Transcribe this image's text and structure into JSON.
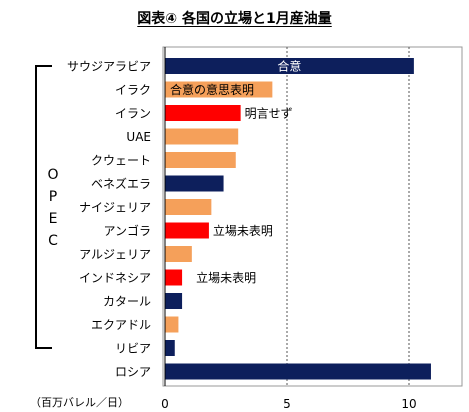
{
  "title": "図表④ 各国の立場と1月産油量",
  "chart_data": {
    "type": "bar",
    "orientation": "horizontal",
    "categories": [
      "サウジアラビア",
      "イラク",
      "イラン",
      "UAE",
      "クウェート",
      "ベネズエラ",
      "ナイジェリア",
      "アンゴラ",
      "アルジェリア",
      "インドネシア",
      "カタール",
      "エクアドル",
      "リビア",
      "ロシア"
    ],
    "values": [
      10.2,
      4.4,
      3.1,
      3.0,
      2.9,
      2.4,
      1.9,
      1.8,
      1.1,
      0.7,
      0.7,
      0.55,
      0.4,
      10.9
    ],
    "bar_colors": [
      "#0d1f5c",
      "#f5a05a",
      "#ff0000",
      "#f5a05a",
      "#f5a05a",
      "#0d1f5c",
      "#f5a05a",
      "#ff0000",
      "#f5a05a",
      "#ff0000",
      "#0d1f5c",
      "#f5a05a",
      "#0d1f5c",
      "#0d1f5c"
    ],
    "annotations": [
      {
        "category": "サウジアラビア",
        "text": "合意",
        "color": "#ffffff",
        "placement": "inside-center"
      },
      {
        "category": "イラク",
        "text": "合意の意思表明",
        "color": "#000000",
        "placement": "inside-left"
      },
      {
        "category": "イラン",
        "text": "明言せず",
        "color": "#000000",
        "placement": "right-of-bar"
      },
      {
        "category": "アンゴラ",
        "text": "立場未表明",
        "color": "#000000",
        "placement": "right-of-bar"
      },
      {
        "category": "インドネシア",
        "text": "立場未表明",
        "color": "#000000",
        "placement": "right-of-bar"
      }
    ],
    "group_bracket": {
      "label": "OPEC",
      "from": "サウジアラビア",
      "to": "リビア"
    },
    "unit_label": "（百万バレル／日）",
    "xlim": [
      0,
      11
    ],
    "xticks": [
      0,
      5,
      10
    ],
    "grid": "vertical dashed"
  }
}
